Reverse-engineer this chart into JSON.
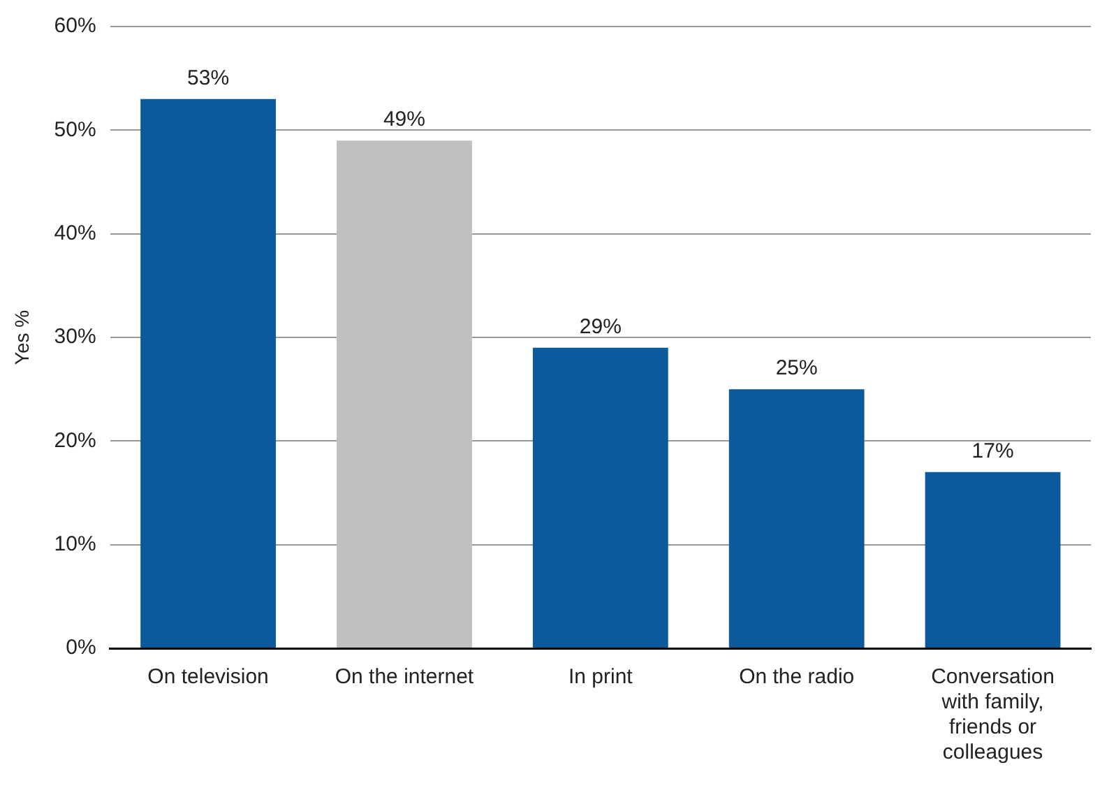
{
  "chart_data": {
    "type": "bar",
    "ylabel": "Yes %",
    "categories": [
      "On television",
      "On the internet",
      "In print",
      "On the radio",
      "Conversation with family, friends or colleagues"
    ],
    "values": [
      53,
      49,
      29,
      25,
      17
    ],
    "colors": [
      "#0a5a9c",
      "#bfc0c2",
      "#0a5a9c",
      "#0a5a9c",
      "#0a5a9c"
    ],
    "value_labels": [
      "53%",
      "49%",
      "29%",
      "25%",
      "17%"
    ],
    "ylim": [
      0,
      60
    ],
    "yticks": [
      {
        "value": 0,
        "label": "0%"
      },
      {
        "value": 10,
        "label": "10%"
      },
      {
        "value": 20,
        "label": "20%"
      },
      {
        "value": 30,
        "label": "30%"
      },
      {
        "value": 40,
        "label": "40%"
      },
      {
        "value": 50,
        "label": "50%"
      },
      {
        "value": 60,
        "label": "60%"
      }
    ],
    "grid": "y",
    "legend": false
  }
}
